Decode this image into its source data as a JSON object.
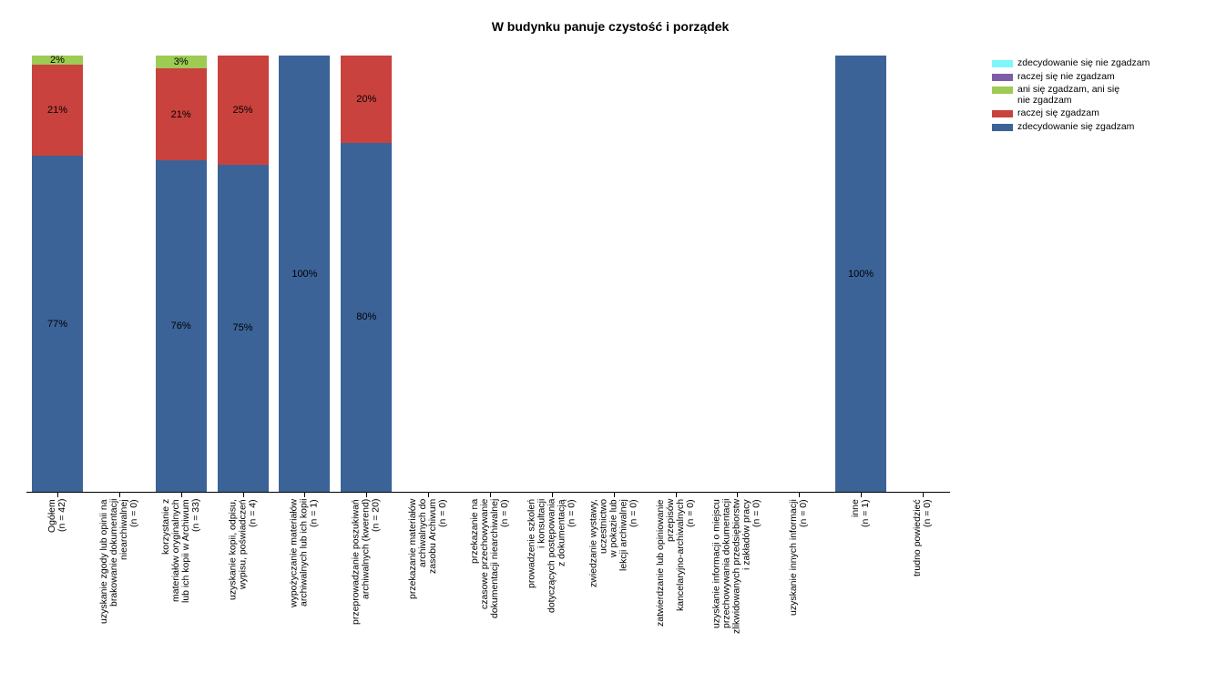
{
  "title": "W budynku panuje czystość i porządek",
  "legend": {
    "position": "top-right",
    "items": [
      {
        "label": "zdecydowanie się nie zgadzam",
        "color": "#7FF7F9"
      },
      {
        "label": "raczej się nie zgadzam",
        "color": "#7B5EA5"
      },
      {
        "label": "ani się zgadzam, ani się\nnie zgadzam",
        "color": "#9DCB53"
      },
      {
        "label": "raczej się zgadzam",
        "color": "#C9423D"
      },
      {
        "label": "zdecydowanie się zgadzam",
        "color": "#3B6397"
      }
    ]
  },
  "chart_data": {
    "type": "bar",
    "stacked": true,
    "orientation": "vertical",
    "unit": "%",
    "ylim": [
      0,
      100
    ],
    "grid": false,
    "legend_position": "top-right",
    "title": "W budynku panuje czystość i porządek",
    "categories": [
      "Ogółem\n(n = 42)",
      "uzyskanie zgody lub opinii na\nbrakowanie dokumentacji\nniearchiwalnej\n(n = 0)",
      "korzystanie z\nmateriałów oryginalnych\nlub ich kopii w Archiwum\n(n = 33)",
      "uzyskanie kopii, odpisu,\nwypisu, poświadczeń\n(n = 4)",
      "wypożyczanie materiałów\narchiwalnych lub ich kopii\n(n = 1)",
      "przeprowadzanie poszukiwań\narchiwalnych (kwerend)\n(n = 20)",
      "przekazanie materiałów\narchiwalnych do\nzasobu Archiwum\n(n = 0)",
      "przekazanie na\nczasowe przechowywanie\ndokumentacji niearchiwalnej\n(n = 0)",
      "prowadzenie szkoleń\ni konsultacji\ndotyczących postępowania\nz dokumentacją\n(n = 0)",
      "zwiedzanie wystawy,\nuczestnictwo\nw pokazie lub\nlekcji archiwalnej\n(n = 0)",
      "zatwierdzanie lub opiniowanie\nprzepisów\nkancelaryjno-archiwalnych\n(n = 0)",
      "uzyskanie informacji o miejscu\nprzechowywania dokumentacji\nzlikwidowanych przedsiębiorstw\ni zakładów pracy\n(n = 0)",
      "uzyskanie innych informacji\n(n = 0)",
      "inne\n(n = 1)",
      "trudno powiedzieć\n(n = 0)"
    ],
    "n_values": [
      42,
      0,
      33,
      4,
      1,
      20,
      0,
      0,
      0,
      0,
      0,
      0,
      0,
      1,
      0
    ],
    "series": [
      {
        "name": "zdecydowanie się nie zgadzam",
        "color": "#7FF7F9",
        "values": [
          0,
          0,
          0,
          0,
          0,
          0,
          0,
          0,
          0,
          0,
          0,
          0,
          0,
          0,
          0
        ]
      },
      {
        "name": "raczej się nie zgadzam",
        "color": "#7B5EA5",
        "values": [
          0,
          0,
          0,
          0,
          0,
          0,
          0,
          0,
          0,
          0,
          0,
          0,
          0,
          0,
          0
        ]
      },
      {
        "name": "ani się zgadzam, ani się nie zgadzam",
        "color": "#9DCB53",
        "values": [
          2,
          0,
          3,
          0,
          0,
          0,
          0,
          0,
          0,
          0,
          0,
          0,
          0,
          0,
          0
        ]
      },
      {
        "name": "raczej się zgadzam",
        "color": "#C9423D",
        "values": [
          21,
          0,
          21,
          25,
          0,
          20,
          0,
          0,
          0,
          0,
          0,
          0,
          0,
          0,
          0
        ]
      },
      {
        "name": "zdecydowanie się zgadzam",
        "color": "#3B6397",
        "values": [
          77,
          0,
          76,
          75,
          100,
          80,
          0,
          0,
          0,
          0,
          0,
          0,
          0,
          100,
          0
        ]
      }
    ]
  }
}
